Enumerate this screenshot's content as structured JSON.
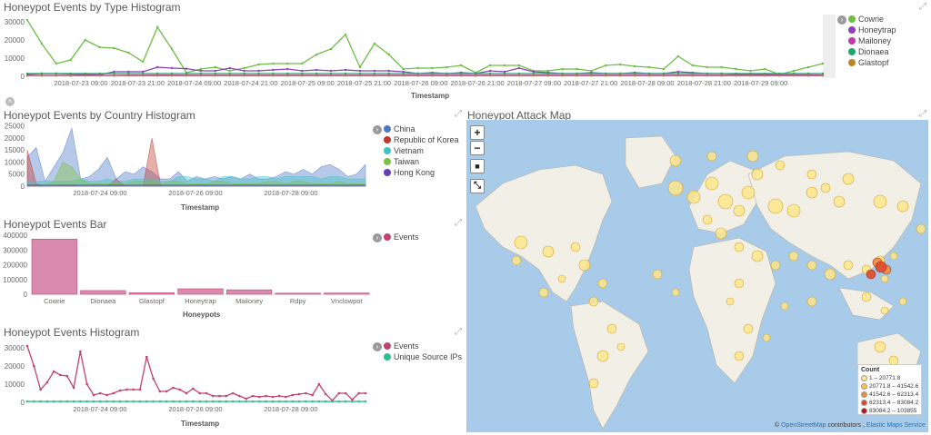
{
  "panels": {
    "type_histogram": {
      "title": "Honeypot Events by Type Histogram",
      "xlabel": "Timestamp",
      "yticks": [
        "30000",
        "20000",
        "10000",
        "0"
      ],
      "xticks": [
        "2018-07-23 09:00",
        "2018-07-23 21:00",
        "2018-07-24 09:00",
        "2018-07-24 21:00",
        "2018-07-25 09:00",
        "2018-07-25 21:00",
        "2018-07-26 09:00",
        "2018-07-26 21:00",
        "2018-07-27 09:00",
        "2018-07-27 21:00",
        "2018-07-28 09:00",
        "2018-07-28 21:00",
        "2018-07-29 09:00"
      ],
      "legend": [
        {
          "label": "Cowrie",
          "color": "#6dbe45"
        },
        {
          "label": "Honeytrap",
          "color": "#8e3fb5"
        },
        {
          "label": "Mailoney",
          "color": "#c039a8"
        },
        {
          "label": "Dionaea",
          "color": "#1fa66e"
        },
        {
          "label": "Glastopf",
          "color": "#b5882b"
        }
      ]
    },
    "country_histogram": {
      "title": "Honeypot Events by Country Histogram",
      "xlabel": "Timestamp",
      "yticks": [
        "25000",
        "20000",
        "15000",
        "10000",
        "5000",
        "0"
      ],
      "xticks": [
        "2018-07-24 09:00",
        "2018-07-26 09:00",
        "2018-07-28 09:00"
      ],
      "legend": [
        {
          "label": "China",
          "color": "#4a78c7"
        },
        {
          "label": "Republic of Korea",
          "color": "#c0392b"
        },
        {
          "label": "Vietnam",
          "color": "#3cc4c4"
        },
        {
          "label": "Taiwan",
          "color": "#7cc242"
        },
        {
          "label": "Hong Kong",
          "color": "#6a3db5"
        }
      ]
    },
    "events_bar": {
      "title": "Honeypot Events Bar",
      "xlabel": "Honeypots",
      "yticks": [
        "400000",
        "300000",
        "200000",
        "100000",
        "0"
      ],
      "legend": [
        {
          "label": "Events",
          "color": "#c2426e"
        }
      ]
    },
    "events_histogram": {
      "title": "Honeypot Events Histogram",
      "xlabel": "Timestamp",
      "yticks": [
        "30000",
        "20000",
        "10000",
        "0"
      ],
      "xticks": [
        "2018-07-24 09:00",
        "2018-07-26 09:00",
        "2018-07-28 09:00"
      ],
      "legend": [
        {
          "label": "Events",
          "color": "#c2426e"
        },
        {
          "label": "Unique Source IPs",
          "color": "#2fbf8a"
        }
      ]
    },
    "attack_map": {
      "title": "Honeypot Attack Map",
      "controls": {
        "zoom_in": "+",
        "zoom_out": "−",
        "draw": "■",
        "fit": "⤡"
      },
      "legend_title": "Count",
      "legend": [
        {
          "label": "1 – 20771.8",
          "color": "#fde68a"
        },
        {
          "label": "20771.8 – 41542.6",
          "color": "#f9c24b"
        },
        {
          "label": "41542.6 – 62313.4",
          "color": "#f08c3a"
        },
        {
          "label": "62313.4 – 83084.2",
          "color": "#dd4a2a"
        },
        {
          "label": "83084.2 – 103855",
          "color": "#b0121b"
        }
      ],
      "attribution": {
        "prefix": "© ",
        "osm": "OpenStreetMap",
        "mid": " contributors , ",
        "ems": "Elastic Maps Service"
      }
    }
  },
  "chart_data": [
    {
      "type": "line",
      "title": "Honeypot Events by Type Histogram",
      "xlabel": "Timestamp",
      "ylim": [
        0,
        33000
      ],
      "series": [
        {
          "name": "Cowrie",
          "values": [
            31000,
            18000,
            7000,
            9000,
            20000,
            16000,
            15500,
            13000,
            8000,
            27000,
            15000,
            2000,
            4000,
            5000,
            3000,
            4500,
            6500,
            7000,
            7000,
            7000,
            12000,
            15000,
            23000,
            5000,
            18000,
            12000,
            4000,
            4500,
            4500,
            5000,
            6000,
            2000,
            6000,
            6000,
            6000,
            3000,
            3000,
            4000,
            4000,
            3000,
            6000,
            6500,
            5500,
            5000,
            4000,
            11000,
            6000,
            5000,
            5000,
            4000,
            3000,
            4000,
            1000,
            3000,
            5000,
            7000
          ]
        },
        {
          "name": "Honeytrap",
          "values": [
            1000,
            1500,
            1500,
            1200,
            1000,
            800,
            2500,
            2500,
            2500,
            5000,
            4500,
            4200,
            3000,
            3000,
            4500,
            3000,
            3000,
            3500,
            4000,
            3000,
            3500,
            3000,
            3500,
            3000,
            3000,
            3000,
            2500,
            1500,
            2000,
            1500,
            2000,
            1500,
            3000,
            2500,
            4500,
            2500,
            2000,
            1500,
            1500,
            2000,
            1500,
            1500,
            2000,
            1500,
            1500,
            2500,
            2000,
            1500,
            1500,
            1200,
            1200,
            1000,
            800,
            800,
            800,
            700
          ]
        },
        {
          "name": "Mailoney",
          "values": [
            500,
            500,
            500,
            500,
            500,
            500,
            500,
            600,
            600,
            700,
            700,
            600,
            600,
            600,
            600,
            600,
            600,
            600,
            600,
            600,
            600,
            600,
            600,
            600,
            600,
            600,
            600,
            600,
            600,
            600,
            600,
            600,
            600,
            600,
            600,
            600,
            600,
            600,
            600,
            600,
            600,
            600,
            600,
            600,
            600,
            600,
            600,
            600,
            600,
            600,
            600,
            600,
            600,
            600,
            600,
            600
          ]
        },
        {
          "name": "Dionaea",
          "values": [
            1500,
            1500,
            1500,
            1500,
            1500,
            1500,
            1500,
            1500,
            1500,
            1500,
            1500,
            1500,
            1500,
            1500,
            1500,
            1500,
            1500,
            1500,
            1500,
            1500,
            1500,
            1500,
            1500,
            1500,
            1500,
            1500,
            1500,
            1500,
            1500,
            1500,
            1500,
            1500,
            1500,
            1500,
            1500,
            1500,
            1500,
            1500,
            1500,
            1500,
            1500,
            1500,
            1500,
            1500,
            1500,
            1500,
            1500,
            1500,
            1500,
            1500,
            1500,
            1500,
            1500,
            1500,
            1500,
            1500
          ]
        },
        {
          "name": "Glastopf",
          "values": [
            300,
            300,
            300,
            300,
            300,
            300,
            300,
            300,
            300,
            300,
            300,
            300,
            300,
            300,
            300,
            300,
            300,
            300,
            300,
            300,
            300,
            300,
            300,
            300,
            300,
            300,
            300,
            300,
            300,
            300,
            300,
            300,
            300,
            300,
            300,
            300,
            300,
            300,
            300,
            300,
            300,
            300,
            300,
            300,
            300,
            300,
            300,
            300,
            300,
            300,
            300,
            300,
            300,
            300,
            300,
            300
          ]
        }
      ]
    },
    {
      "type": "area",
      "title": "Honeypot Events by Country Histogram",
      "xlabel": "Timestamp",
      "ylim": [
        0,
        26000
      ],
      "series": [
        {
          "name": "China",
          "values": [
            12000,
            16000,
            2000,
            8000,
            14000,
            24000,
            3000,
            4000,
            7000,
            12000,
            3000,
            6000,
            5000,
            8000,
            6000,
            3000,
            3000,
            6000,
            2000,
            4000,
            3000,
            4000,
            3000,
            4000,
            3000,
            5000,
            3000,
            3000,
            4000,
            6000,
            5000,
            7000,
            5000,
            8000,
            9000,
            7000,
            4000,
            5000,
            9000
          ]
        },
        {
          "name": "Republic of Korea",
          "values": [
            15000,
            1000,
            0,
            0,
            500,
            500,
            0,
            0,
            0,
            0,
            3000,
            0,
            0,
            0,
            20000,
            0,
            0,
            0,
            0,
            0,
            0,
            0,
            0,
            0,
            0,
            0,
            0,
            0,
            0,
            0,
            0,
            0,
            0,
            0,
            0,
            0,
            0,
            0,
            0
          ]
        },
        {
          "name": "Vietnam",
          "values": [
            2000,
            2000,
            2000,
            2000,
            2000,
            2000,
            3000,
            2000,
            2000,
            3000,
            2000,
            2000,
            3000,
            3000,
            3000,
            2000,
            2000,
            4000,
            4000,
            3000,
            3000,
            2000,
            4000,
            4000,
            3000,
            3000,
            4000,
            4000,
            3000,
            4000,
            4000,
            4000,
            4000,
            3000,
            4000,
            4000,
            3000,
            3000,
            3000
          ]
        },
        {
          "name": "Taiwan",
          "values": [
            500,
            500,
            500,
            2000,
            10000,
            8000,
            3000,
            1000,
            1000,
            1000,
            1000,
            1000,
            2000,
            2000,
            2000,
            1000,
            2000,
            2000,
            1000,
            1000,
            1000,
            2000,
            2000,
            1000,
            1000,
            1000,
            1000,
            2000,
            2000,
            1000,
            2000,
            2000,
            1000,
            1000,
            1000,
            2000,
            1000,
            1000,
            1000
          ]
        },
        {
          "name": "Hong Kong",
          "values": [
            500,
            500,
            500,
            500,
            500,
            500,
            500,
            500,
            500,
            500,
            500,
            500,
            500,
            500,
            500,
            500,
            500,
            500,
            500,
            500,
            500,
            500,
            500,
            500,
            500,
            500,
            500,
            500,
            500,
            500,
            500,
            500,
            500,
            500,
            500,
            500,
            500,
            500,
            500
          ]
        }
      ]
    },
    {
      "type": "bar",
      "title": "Honeypot Events Bar",
      "xlabel": "Honeypots",
      "ylim": [
        0,
        400000
      ],
      "categories": [
        "Cowrie",
        "Dionaea",
        "Glastopf",
        "Honeytrap",
        "Mailoney",
        "Rdpy",
        "Vnclowpot"
      ],
      "series": [
        {
          "name": "Events",
          "values": [
            375000,
            25000,
            10000,
            37000,
            30000,
            7000,
            8000
          ]
        }
      ]
    },
    {
      "type": "line",
      "title": "Honeypot Events Histogram",
      "xlabel": "Timestamp",
      "ylim": [
        0,
        33000
      ],
      "series": [
        {
          "name": "Events",
          "values": [
            31000,
            20000,
            7000,
            11000,
            17000,
            15000,
            14500,
            8000,
            28000,
            10000,
            4000,
            5000,
            4000,
            5000,
            6500,
            7000,
            7000,
            7000,
            25000,
            13000,
            6000,
            6000,
            8000,
            7000,
            5000,
            7500,
            5000,
            5000,
            3500,
            3500,
            3500,
            5000,
            3500,
            2000,
            3500,
            3000,
            3500,
            3000,
            3500,
            3000,
            4000,
            4500,
            5000,
            4000,
            10000,
            4500,
            1000,
            5000,
            5000,
            1500,
            5000,
            5000
          ]
        },
        {
          "name": "Unique Source IPs",
          "values": [
            500,
            500,
            500,
            500,
            500,
            500,
            500,
            500,
            500,
            500,
            500,
            500,
            500,
            500,
            500,
            500,
            500,
            500,
            500,
            500,
            500,
            500,
            500,
            500,
            500,
            500,
            500,
            500,
            500,
            500,
            500,
            500,
            500,
            500,
            500,
            500,
            500,
            500,
            500,
            500,
            500,
            500,
            500,
            500,
            500,
            500,
            500,
            500,
            500,
            500,
            500,
            500
          ]
        }
      ]
    }
  ]
}
